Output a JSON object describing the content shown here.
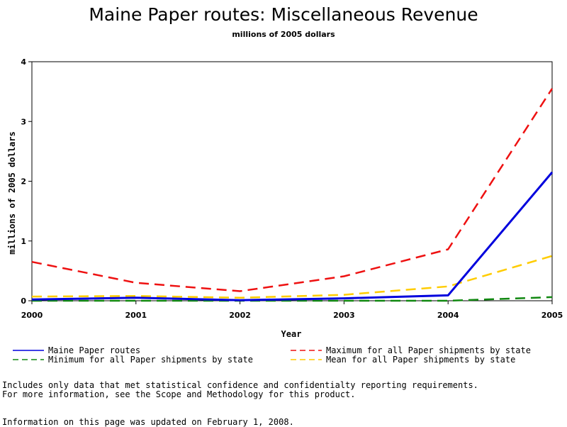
{
  "chart_data": {
    "type": "line",
    "title": "Maine Paper routes: Miscellaneous Revenue",
    "subtitle": "millions of 2005 dollars",
    "xlabel": "Year",
    "ylabel": "millions of 2005 dollars",
    "x": [
      "2000",
      "2001",
      "2002",
      "2003",
      "2004",
      "2005"
    ],
    "xlim": [
      2000,
      2005
    ],
    "ylim": [
      0,
      4
    ],
    "yticks": [
      "0",
      "1",
      "2",
      "3",
      "4"
    ],
    "grid": false,
    "legend_position": "bottom",
    "series": [
      {
        "name": "Maine Paper routes",
        "color": "#0000dd",
        "style": "solid",
        "values": [
          0.02,
          0.05,
          0.01,
          0.04,
          0.09,
          2.15
        ]
      },
      {
        "name": "Maximum for all Paper shipments by state",
        "color": "#ee1111",
        "style": "dashed",
        "values": [
          0.65,
          0.3,
          0.16,
          0.41,
          0.86,
          3.55
        ]
      },
      {
        "name": "Minimum for all Paper shipments by state",
        "color": "#118811",
        "style": "dashed",
        "values": [
          0.0,
          0.0,
          0.0,
          0.0,
          0.0,
          0.06
        ]
      },
      {
        "name": "Mean for all Paper shipments by state",
        "color": "#ffcc00",
        "style": "dashed",
        "values": [
          0.07,
          0.08,
          0.05,
          0.1,
          0.24,
          0.75
        ]
      }
    ]
  },
  "notes": {
    "line1": "Includes only data that met statistical confidence and confidentialty reporting requirements.",
    "line2": "For more information, see the Scope and Methodology for this product.",
    "updated": "Information on this page was updated on February 1, 2008."
  }
}
